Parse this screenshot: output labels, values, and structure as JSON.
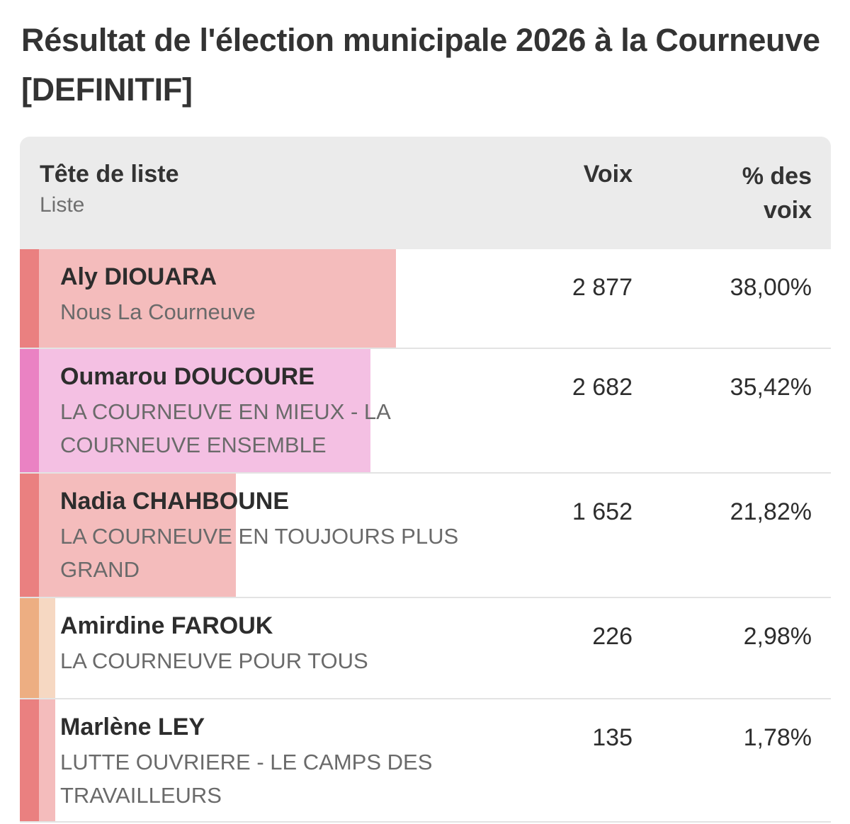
{
  "title": "Résultat de l'élection municipale 2026 à la Courneuve [DEFINITIF]",
  "header": {
    "head_label": "Tête de liste",
    "list_label": "Liste",
    "votes_label": "Voix",
    "pct_label": "% des voix"
  },
  "chart_data": {
    "type": "table",
    "title": "Résultat de l'élection municipale 2026 à la Courneuve [DEFINITIF]",
    "columns": [
      "Tête de liste",
      "Liste",
      "Voix",
      "% des voix"
    ],
    "rows": [
      {
        "name": "Aly DIOUARA",
        "list": "Nous La Courneuve",
        "votes": "2 877",
        "votes_value": 2877,
        "pct": "38,00%",
        "pct_value": 38.0,
        "stripe_color": "#ea8080",
        "bar_color": "#f4bcbc"
      },
      {
        "name": "Oumarou DOUCOURE",
        "list": "LA COURNEUVE EN MIEUX - LA COURNEUVE ENSEMBLE",
        "votes": "2 682",
        "votes_value": 2682,
        "pct": "35,42%",
        "pct_value": 35.42,
        "stripe_color": "#ea82c3",
        "bar_color": "#f4c0e3"
      },
      {
        "name": "Nadia CHAHBOUNE",
        "list": "LA COURNEUVE EN TOUJOURS PLUS GRAND",
        "votes": "1 652",
        "votes_value": 1652,
        "pct": "21,82%",
        "pct_value": 21.82,
        "stripe_color": "#ea8080",
        "bar_color": "#f4bcbc"
      },
      {
        "name": "Amirdine FAROUK",
        "list": "LA COURNEUVE POUR TOUS",
        "votes": "226",
        "votes_value": 226,
        "pct": "2,98%",
        "pct_value": 2.98,
        "stripe_color": "#edae82",
        "bar_color": "#f6d8c2"
      },
      {
        "name": "Marlène LEY",
        "list": "LUTTE OUVRIERE - LE CAMPS DES TRAVAILLEURS",
        "votes": "135",
        "votes_value": 135,
        "pct": "1,78%",
        "pct_value": 1.78,
        "stripe_color": "#ea8080",
        "bar_color": "#f4bcbc"
      }
    ]
  }
}
